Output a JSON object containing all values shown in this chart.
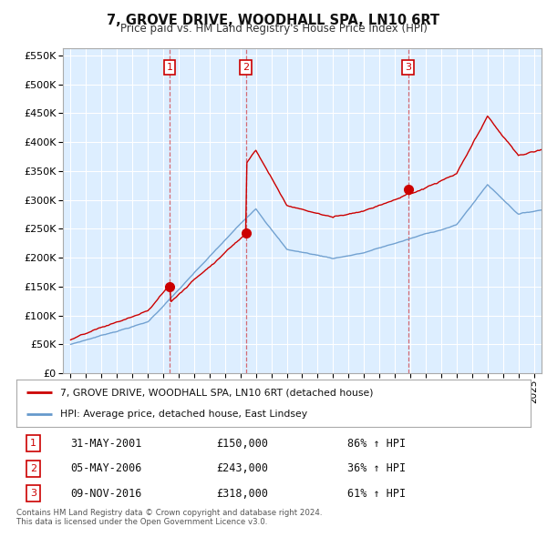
{
  "title": "7, GROVE DRIVE, WOODHALL SPA, LN10 6RT",
  "subtitle": "Price paid vs. HM Land Registry's House Price Index (HPI)",
  "red_label": "7, GROVE DRIVE, WOODHALL SPA, LN10 6RT (detached house)",
  "blue_label": "HPI: Average price, detached house, East Lindsey",
  "footer1": "Contains HM Land Registry data © Crown copyright and database right 2024.",
  "footer2": "This data is licensed under the Open Government Licence v3.0.",
  "transactions": [
    {
      "num": 1,
      "date": "31-MAY-2001",
      "price": "£150,000",
      "change": "86% ↑ HPI",
      "year": 2001.42
    },
    {
      "num": 2,
      "date": "05-MAY-2006",
      "price": "£243,000",
      "change": "36% ↑ HPI",
      "year": 2006.34
    },
    {
      "num": 3,
      "date": "09-NOV-2016",
      "price": "£318,000",
      "change": "61% ↑ HPI",
      "year": 2016.86
    }
  ],
  "transaction_prices": [
    150000,
    243000,
    318000
  ],
  "transaction_years": [
    2001.42,
    2006.34,
    2016.86
  ],
  "ylim": [
    0,
    562500
  ],
  "yticks": [
    0,
    50000,
    100000,
    150000,
    200000,
    250000,
    300000,
    350000,
    400000,
    450000,
    500000,
    550000
  ],
  "xlim_start": 1994.5,
  "xlim_end": 2025.5,
  "bg_color": "#ffffff",
  "chart_bg_color": "#ddeeff",
  "grid_color": "#ffffff",
  "red_color": "#cc0000",
  "blue_color": "#6699cc",
  "dashed_line_color": "#cc0000"
}
